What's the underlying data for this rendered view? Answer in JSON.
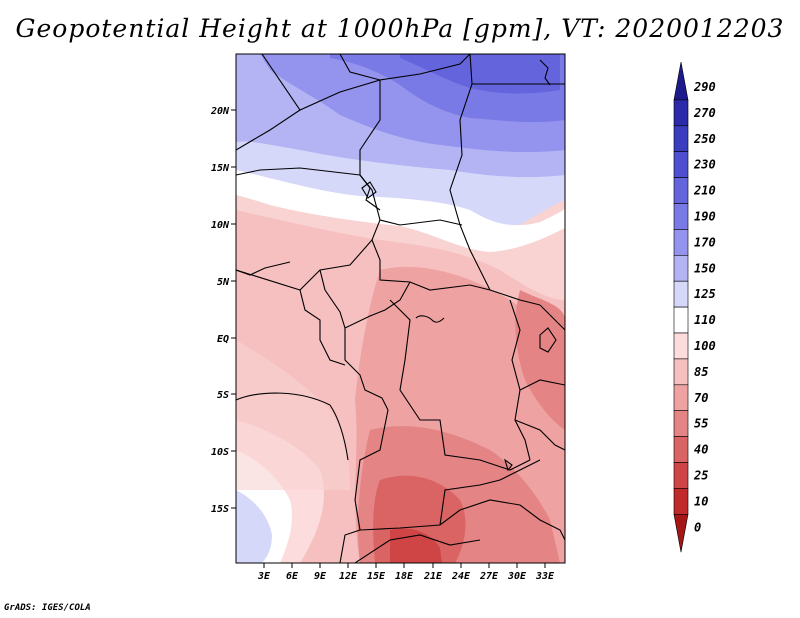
{
  "title": "Geopotential Height at 1000hPa [gpm], VT: 2020012203",
  "credit": "GrADS: IGES/COLA",
  "map": {
    "lat_labels": [
      "20N",
      "15N",
      "10N",
      "5N",
      "EQ",
      "5S",
      "10S",
      "15S"
    ],
    "lon_labels": [
      "3E",
      "6E",
      "9E",
      "12E",
      "15E",
      "18E",
      "21E",
      "24E",
      "27E",
      "30E",
      "33E"
    ]
  },
  "colorbar": {
    "levels": [
      "290",
      "270",
      "250",
      "230",
      "210",
      "190",
      "170",
      "150",
      "125",
      "110",
      "100",
      "85",
      "70",
      "55",
      "40",
      "25",
      "10",
      "0"
    ],
    "colors": [
      "#1f1a8c",
      "#2c2aa8",
      "#3b3dbf",
      "#4f50cf",
      "#6464dc",
      "#7a7ae6",
      "#9494ee",
      "#b4b4f4",
      "#d6d8fa",
      "#ffffff",
      "#fcdcdc",
      "#f7c0c0",
      "#eea2a2",
      "#e48484",
      "#da6464",
      "#cf4444",
      "#c02a2a",
      "#a51616"
    ]
  }
}
